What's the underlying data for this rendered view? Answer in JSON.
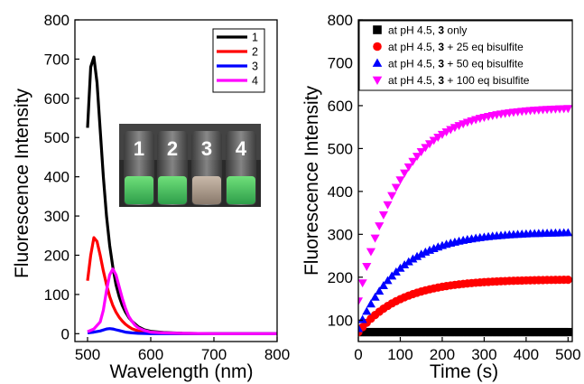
{
  "chart_data": [
    {
      "type": "line",
      "xlabel": "Wavelength (nm)",
      "ylabel": "Fluorescence Intensity",
      "xlim": [
        480,
        800
      ],
      "ylim": [
        -20,
        800
      ],
      "xticks": [
        "500",
        "600",
        "700",
        "800"
      ],
      "yticks": [
        "0",
        "100",
        "200",
        "300",
        "400",
        "500",
        "600",
        "700",
        "800"
      ],
      "legend_position": "top-right",
      "inset_photo_labels": [
        "1",
        "2",
        "3",
        "4"
      ],
      "series": [
        {
          "name": "1",
          "color": "#000000",
          "x": [
            500,
            505,
            510,
            515,
            520,
            525,
            530,
            535,
            540,
            545,
            550,
            555,
            560,
            565,
            570,
            575,
            580,
            590,
            600,
            620,
            650,
            700,
            800
          ],
          "y": [
            525,
            680,
            705,
            640,
            520,
            400,
            300,
            225,
            170,
            125,
            95,
            72,
            55,
            42,
            32,
            25,
            18,
            10,
            6,
            3,
            1,
            0,
            0
          ]
        },
        {
          "name": "2",
          "color": "#ff0000",
          "x": [
            500,
            505,
            510,
            515,
            520,
            525,
            530,
            535,
            540,
            545,
            550,
            555,
            560,
            565,
            570,
            575,
            580,
            590,
            600,
            620,
            650,
            700,
            800
          ],
          "y": [
            135,
            200,
            245,
            235,
            200,
            160,
            125,
            95,
            72,
            55,
            42,
            32,
            24,
            18,
            13,
            10,
            7,
            4,
            2,
            1,
            0,
            0,
            0
          ]
        },
        {
          "name": "3",
          "color": "#0000ff",
          "x": [
            500,
            510,
            520,
            530,
            535,
            540,
            545,
            550,
            555,
            560,
            570,
            580,
            600,
            650,
            800
          ],
          "y": [
            2,
            4,
            7,
            12,
            13,
            12,
            10,
            8,
            6,
            4,
            2,
            1,
            0,
            0,
            0
          ]
        },
        {
          "name": "4",
          "color": "#ff00ff",
          "x": [
            500,
            510,
            520,
            525,
            530,
            535,
            540,
            545,
            550,
            555,
            560,
            565,
            570,
            575,
            580,
            590,
            600,
            620,
            650,
            700,
            800
          ],
          "y": [
            5,
            12,
            30,
            60,
            110,
            150,
            165,
            150,
            120,
            90,
            65,
            45,
            32,
            22,
            15,
            8,
            4,
            2,
            1,
            0,
            0
          ]
        }
      ]
    },
    {
      "type": "scatter",
      "xlabel": "Time (s)",
      "ylabel": "Fluorescence Intensity",
      "xlim": [
        0,
        510
      ],
      "ylim": [
        50,
        800
      ],
      "xticks": [
        "0",
        "100",
        "200",
        "300",
        "400",
        "500"
      ],
      "yticks": [
        "100",
        "200",
        "300",
        "400",
        "500",
        "600",
        "700",
        "800"
      ],
      "legend_position": "top",
      "series": [
        {
          "name_prefix": "at pH 4.5, ",
          "name_bold": "3",
          "name_suffix": " only",
          "color": "#000000",
          "marker": "square",
          "plateau": 72,
          "start": 72,
          "rate": 0.01
        },
        {
          "name_prefix": "at pH 4.5, ",
          "name_bold": "3",
          "name_suffix": " + 25 eq bisulfite",
          "color": "#ff0000",
          "marker": "circle",
          "plateau": 195,
          "start": 72,
          "rate": 0.0098
        },
        {
          "name_prefix": "at pH 4.5, ",
          "name_bold": "3",
          "name_suffix": " + 50 eq bisulfite",
          "color": "#0000ff",
          "marker": "triangle-up",
          "plateau": 305,
          "start": 80,
          "rate": 0.0098
        },
        {
          "name_prefix": "at pH 4.5, ",
          "name_bold": "3",
          "name_suffix": " + 100 eq bisulfite",
          "color": "#ff00ff",
          "marker": "triangle-down",
          "plateau": 597,
          "start": 145,
          "rate": 0.0098
        }
      ],
      "x_start": 0,
      "x_step": 10,
      "x_end": 500
    }
  ]
}
